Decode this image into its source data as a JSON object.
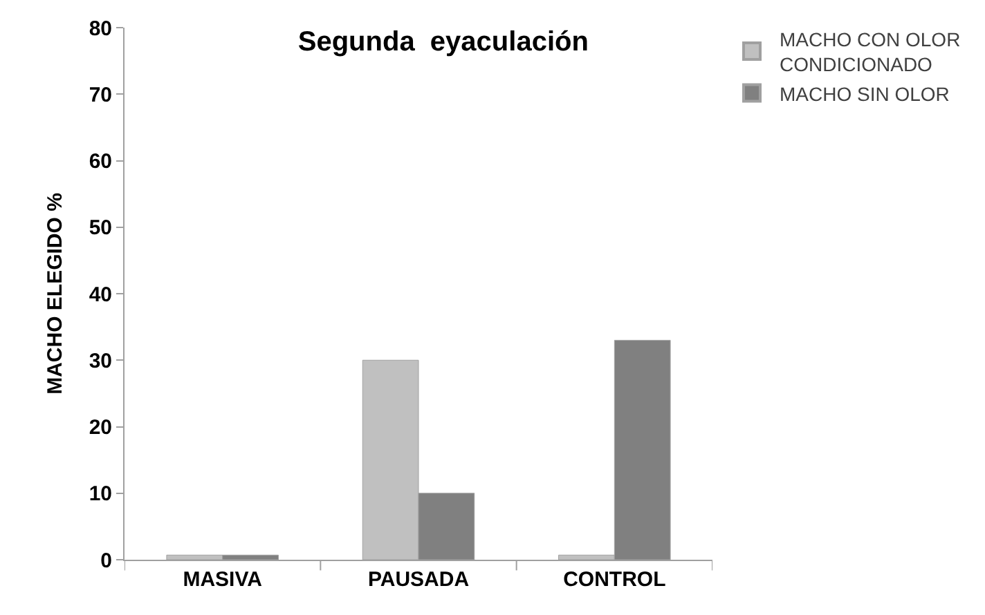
{
  "chart_data": {
    "type": "bar",
    "title": "Segunda  eyaculación",
    "ylabel": "MACHO ELEGIDO %",
    "categories": [
      "MASIVA",
      "PAUSADA",
      "CONTROL"
    ],
    "series": [
      {
        "name": "MACHO CON OLOR CONDICIONADO",
        "color": "#c0c0c0",
        "values": [
          0.7,
          30,
          0.7
        ]
      },
      {
        "name": "MACHO SIN OLOR",
        "color": "#808080",
        "values": [
          0.7,
          10,
          33
        ]
      }
    ],
    "ylim": [
      0,
      80
    ],
    "yticks": [
      0,
      10,
      20,
      30,
      40,
      50,
      60,
      70,
      80
    ],
    "legend": "top right"
  }
}
